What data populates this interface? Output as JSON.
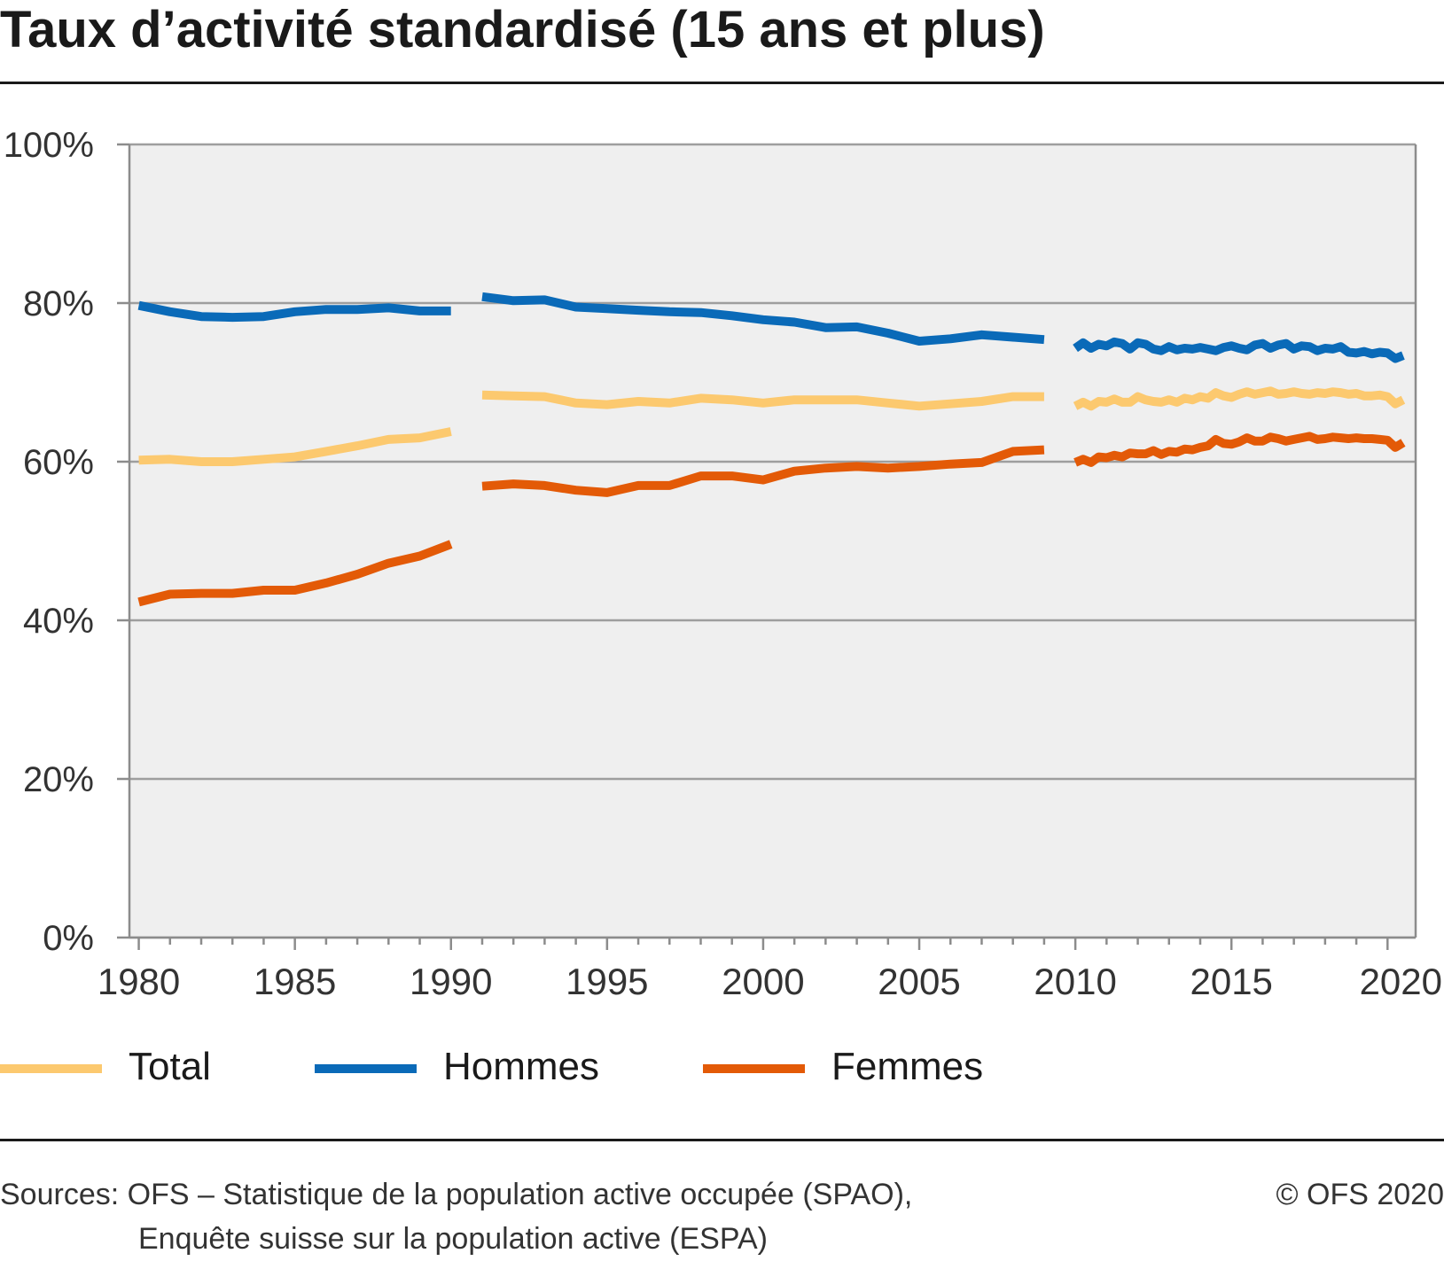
{
  "title": "Taux d’activité standardisé (15 ans et plus)",
  "footer": {
    "source_line1": "Sources: OFS – Statistique de la population active occupée (SPAO),",
    "source_line2": "Enquête suisse sur la population active (ESPA)",
    "copyright": "© OFS 2020"
  },
  "colors": {
    "plot_bg": "#efefef",
    "grid": "#9e9e9e",
    "axis": "#8c8c8c"
  },
  "chart_data": {
    "type": "line",
    "title": "Taux d’activité standardisé (15 ans et plus)",
    "xlim": [
      1979.7,
      2020.9
    ],
    "ylim": [
      0,
      100
    ],
    "y_ticks": [
      0,
      20,
      40,
      60,
      80,
      100
    ],
    "y_tick_labels": [
      "0%",
      "20%",
      "40%",
      "60%",
      "80%",
      "100%"
    ],
    "x_ticks": [
      1980,
      1985,
      1990,
      1995,
      2000,
      2005,
      2010,
      2015,
      2020
    ],
    "x_tick_labels": [
      "1980",
      "1985",
      "1990",
      "1995",
      "2000",
      "2005",
      "2010",
      "2015",
      "2020"
    ],
    "grid": true,
    "legend_position": "bottom",
    "series": [
      {
        "name": "Total",
        "color": "#fcc96f",
        "segments": [
          {
            "x": [
              1980,
              1981,
              1982,
              1983,
              1984,
              1985,
              1986,
              1987,
              1988,
              1989,
              1990
            ],
            "y": [
              60.2,
              60.3,
              60.0,
              60.0,
              60.3,
              60.6,
              61.3,
              62.0,
              62.8,
              63.0,
              63.8
            ]
          },
          {
            "x": [
              1991,
              1992,
              1993,
              1994,
              1995,
              1996,
              1997,
              1998,
              1999,
              2000,
              2001,
              2002,
              2003,
              2004,
              2005,
              2006,
              2007,
              2008,
              2009
            ],
            "y": [
              68.4,
              68.3,
              68.2,
              67.4,
              67.2,
              67.6,
              67.4,
              68.0,
              67.8,
              67.4,
              67.8,
              67.8,
              67.8,
              67.4,
              67.0,
              67.3,
              67.6,
              68.2,
              68.2
            ]
          },
          {
            "x": [
              2010.0,
              2010.25,
              2010.5,
              2010.75,
              2011.0,
              2011.25,
              2011.5,
              2011.75,
              2012.0,
              2012.25,
              2012.5,
              2012.75,
              2013.0,
              2013.25,
              2013.5,
              2013.75,
              2014.0,
              2014.25,
              2014.5,
              2014.75,
              2015.0,
              2015.25,
              2015.5,
              2015.75,
              2016.0,
              2016.25,
              2016.5,
              2016.75,
              2017.0,
              2017.25,
              2017.5,
              2017.75,
              2018.0,
              2018.25,
              2018.5,
              2018.75,
              2019.0,
              2019.25,
              2019.5,
              2019.75,
              2020.0,
              2020.25,
              2020.5
            ],
            "y": [
              67.0,
              67.5,
              67.0,
              67.6,
              67.5,
              67.9,
              67.5,
              67.5,
              68.2,
              67.8,
              67.6,
              67.5,
              67.8,
              67.5,
              68.0,
              67.8,
              68.2,
              68.0,
              68.7,
              68.3,
              68.1,
              68.5,
              68.8,
              68.5,
              68.7,
              68.9,
              68.5,
              68.6,
              68.8,
              68.6,
              68.5,
              68.7,
              68.6,
              68.8,
              68.7,
              68.5,
              68.6,
              68.3,
              68.3,
              68.4,
              68.2,
              67.3,
              67.8
            ]
          }
        ]
      },
      {
        "name": "Hommes",
        "color": "#0a6ab8",
        "segments": [
          {
            "x": [
              1980,
              1981,
              1982,
              1983,
              1984,
              1985,
              1986,
              1987,
              1988,
              1989,
              1990
            ],
            "y": [
              79.7,
              78.9,
              78.3,
              78.2,
              78.3,
              78.9,
              79.2,
              79.2,
              79.4,
              79.0,
              79.0
            ]
          },
          {
            "x": [
              1991,
              1992,
              1993,
              1994,
              1995,
              1996,
              1997,
              1998,
              1999,
              2000,
              2001,
              2002,
              2003,
              2004,
              2005,
              2006,
              2007,
              2008,
              2009
            ],
            "y": [
              80.8,
              80.3,
              80.4,
              79.5,
              79.3,
              79.1,
              78.9,
              78.8,
              78.4,
              77.9,
              77.6,
              76.9,
              77.0,
              76.2,
              75.2,
              75.5,
              76.0,
              75.7,
              75.4
            ]
          },
          {
            "x": [
              2010.0,
              2010.25,
              2010.5,
              2010.75,
              2011.0,
              2011.25,
              2011.5,
              2011.75,
              2012.0,
              2012.25,
              2012.5,
              2012.75,
              2013.0,
              2013.25,
              2013.5,
              2013.75,
              2014.0,
              2014.25,
              2014.5,
              2014.75,
              2015.0,
              2015.25,
              2015.5,
              2015.75,
              2016.0,
              2016.25,
              2016.5,
              2016.75,
              2017.0,
              2017.25,
              2017.5,
              2017.75,
              2018.0,
              2018.25,
              2018.5,
              2018.75,
              2019.0,
              2019.25,
              2019.5,
              2019.75,
              2020.0,
              2020.25,
              2020.5
            ],
            "y": [
              74.3,
              75.0,
              74.3,
              74.8,
              74.6,
              75.1,
              74.9,
              74.2,
              75.0,
              74.8,
              74.2,
              74.0,
              74.5,
              74.1,
              74.3,
              74.2,
              74.4,
              74.2,
              74.0,
              74.4,
              74.6,
              74.3,
              74.1,
              74.7,
              74.9,
              74.3,
              74.7,
              74.9,
              74.2,
              74.6,
              74.5,
              74.0,
              74.3,
              74.2,
              74.5,
              73.8,
              73.7,
              73.9,
              73.6,
              73.8,
              73.7,
              73.0,
              73.4
            ]
          }
        ]
      },
      {
        "name": "Femmes",
        "color": "#e35a07",
        "segments": [
          {
            "x": [
              1980,
              1981,
              1982,
              1983,
              1984,
              1985,
              1986,
              1987,
              1988,
              1989,
              1990
            ],
            "y": [
              42.3,
              43.3,
              43.4,
              43.4,
              43.8,
              43.8,
              44.7,
              45.8,
              47.2,
              48.1,
              49.6
            ]
          },
          {
            "x": [
              1991,
              1992,
              1993,
              1994,
              1995,
              1996,
              1997,
              1998,
              1999,
              2000,
              2001,
              2002,
              2003,
              2004,
              2005,
              2006,
              2007,
              2008,
              2009
            ],
            "y": [
              56.9,
              57.2,
              57.0,
              56.4,
              56.1,
              57.0,
              57.0,
              58.2,
              58.2,
              57.7,
              58.8,
              59.2,
              59.4,
              59.2,
              59.4,
              59.7,
              59.9,
              61.3,
              61.5
            ]
          },
          {
            "x": [
              2010.0,
              2010.25,
              2010.5,
              2010.75,
              2011.0,
              2011.25,
              2011.5,
              2011.75,
              2012.0,
              2012.25,
              2012.5,
              2012.75,
              2013.0,
              2013.25,
              2013.5,
              2013.75,
              2014.0,
              2014.25,
              2014.5,
              2014.75,
              2015.0,
              2015.25,
              2015.5,
              2015.75,
              2016.0,
              2016.25,
              2016.5,
              2016.75,
              2017.0,
              2017.25,
              2017.5,
              2017.75,
              2018.0,
              2018.25,
              2018.5,
              2018.75,
              2019.0,
              2019.25,
              2019.5,
              2019.75,
              2020.0,
              2020.25,
              2020.5
            ],
            "y": [
              59.9,
              60.3,
              59.9,
              60.6,
              60.5,
              60.8,
              60.6,
              61.1,
              61.0,
              61.0,
              61.4,
              60.9,
              61.3,
              61.2,
              61.6,
              61.5,
              61.8,
              62.0,
              62.8,
              62.3,
              62.2,
              62.5,
              63.0,
              62.6,
              62.6,
              63.1,
              62.9,
              62.6,
              62.8,
              63.0,
              63.2,
              62.8,
              62.9,
              63.1,
              63.0,
              62.9,
              63.0,
              62.9,
              62.9,
              62.8,
              62.7,
              61.8,
              62.4
            ]
          }
        ]
      }
    ]
  }
}
